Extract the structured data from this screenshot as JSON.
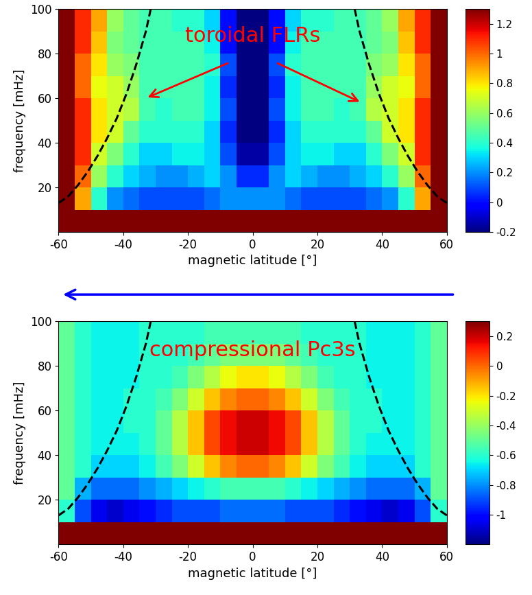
{
  "chart_data": [
    {
      "type": "heatmap",
      "xlabel": "magnetic latitude [°]",
      "ylabel": "frequency [mHz]",
      "xlim": [
        -60,
        60
      ],
      "xticks": [
        -60,
        -40,
        -20,
        0,
        20,
        40,
        60
      ],
      "ylim": [
        0,
        100
      ],
      "yticks": [
        20,
        40,
        60,
        80,
        100
      ],
      "annotations": [
        "toroidal FLRs"
      ],
      "x_edges": [
        -60,
        -55,
        -50,
        -45,
        -40,
        -35,
        -30,
        -25,
        -20,
        -15,
        -10,
        -5,
        0,
        5,
        10,
        15,
        20,
        25,
        30,
        35,
        40,
        45,
        50,
        55,
        60
      ],
      "y_edges": [
        0,
        10,
        20,
        30,
        40,
        50,
        60,
        70,
        80,
        90,
        100
      ],
      "cells": [
        [
          1.3,
          1.3,
          1.3,
          1.3,
          1.3,
          1.3,
          1.3,
          1.3,
          1.3,
          1.3,
          1.3,
          1.3,
          1.3,
          1.3,
          1.3,
          1.3,
          1.3,
          1.3,
          1.3,
          1.3,
          1.3,
          1.3,
          1.3,
          1.3
        ],
        [
          1.3,
          0.9,
          0.4,
          0.2,
          0.15,
          0.1,
          0.1,
          0.1,
          0.1,
          0.15,
          0.2,
          0.2,
          0.2,
          0.2,
          0.15,
          0.1,
          0.1,
          0.1,
          0.1,
          0.15,
          0.2,
          0.4,
          0.9,
          1.3
        ],
        [
          1.3,
          1.0,
          0.6,
          0.4,
          0.3,
          0.25,
          0.2,
          0.2,
          0.25,
          0.3,
          0.2,
          0.05,
          0.05,
          0.2,
          0.3,
          0.25,
          0.2,
          0.2,
          0.25,
          0.3,
          0.4,
          0.6,
          1.0,
          1.3
        ],
        [
          1.3,
          1.1,
          0.7,
          0.55,
          0.4,
          0.3,
          0.3,
          0.35,
          0.35,
          0.3,
          0.1,
          -0.15,
          -0.15,
          0.1,
          0.3,
          0.35,
          0.35,
          0.3,
          0.3,
          0.4,
          0.55,
          0.7,
          1.1,
          1.3
        ],
        [
          1.3,
          1.1,
          0.8,
          0.7,
          0.5,
          0.4,
          0.4,
          0.4,
          0.4,
          0.3,
          0.05,
          -0.2,
          -0.2,
          0.05,
          0.3,
          0.4,
          0.4,
          0.4,
          0.4,
          0.5,
          0.7,
          0.8,
          1.1,
          1.3
        ],
        [
          1.3,
          1.1,
          0.8,
          0.7,
          0.65,
          0.45,
          0.4,
          0.45,
          0.45,
          0.35,
          0.1,
          -0.2,
          -0.2,
          0.1,
          0.35,
          0.45,
          0.45,
          0.4,
          0.45,
          0.65,
          0.7,
          0.8,
          1.1,
          1.3
        ],
        [
          1.3,
          1.0,
          0.75,
          0.7,
          0.6,
          0.45,
          0.45,
          0.45,
          0.45,
          0.35,
          0.05,
          -0.2,
          -0.2,
          0.05,
          0.35,
          0.45,
          0.45,
          0.45,
          0.45,
          0.6,
          0.7,
          0.75,
          1.0,
          1.3
        ],
        [
          1.3,
          1.0,
          0.8,
          0.6,
          0.55,
          0.45,
          0.45,
          0.45,
          0.45,
          0.4,
          0.1,
          -0.2,
          -0.2,
          0.1,
          0.4,
          0.45,
          0.45,
          0.45,
          0.45,
          0.55,
          0.6,
          0.8,
          1.0,
          1.3
        ],
        [
          1.3,
          1.1,
          0.85,
          0.55,
          0.5,
          0.45,
          0.45,
          0.45,
          0.45,
          0.35,
          0.0,
          -0.2,
          -0.2,
          0.0,
          0.35,
          0.45,
          0.45,
          0.45,
          0.45,
          0.5,
          0.55,
          0.85,
          1.1,
          1.3
        ],
        [
          1.3,
          1.1,
          0.9,
          0.6,
          0.5,
          0.45,
          0.45,
          0.4,
          0.4,
          0.3,
          0.0,
          -0.2,
          -0.2,
          0.0,
          0.3,
          0.4,
          0.4,
          0.45,
          0.45,
          0.5,
          0.6,
          0.9,
          1.1,
          1.3
        ]
      ],
      "colorbar": {
        "range": [
          -0.2,
          1.3
        ],
        "ticks": [
          -0.2,
          0,
          0.2,
          0.4,
          0.6,
          0.8,
          1,
          1.2
        ]
      },
      "series": [
        {
          "x": [
            -60,
            -57,
            -54,
            -51,
            -48,
            -45,
            -42,
            -39,
            -36,
            -33,
            -31.5
          ],
          "values": [
            13,
            16,
            21,
            27,
            34,
            42,
            51,
            62,
            75,
            90,
            100
          ],
          "color": "black",
          "line_style": "dashed"
        },
        {
          "x": [
            60,
            57,
            54,
            51,
            48,
            45,
            42,
            39,
            36,
            33,
            31.5
          ],
          "values": [
            13,
            16,
            21,
            27,
            34,
            42,
            51,
            62,
            75,
            90,
            100
          ],
          "color": "black",
          "line_style": "dashed"
        }
      ]
    },
    {
      "type": "heatmap",
      "xlabel": "magnetic latitude [°]",
      "ylabel": "frequency [mHz]",
      "xlim": [
        -60,
        60
      ],
      "xticks": [
        -60,
        -40,
        -20,
        0,
        20,
        40,
        60
      ],
      "ylim": [
        0,
        100
      ],
      "yticks": [
        20,
        40,
        60,
        80,
        100
      ],
      "annotations": [
        "compressional Pc3s"
      ],
      "x_edges": [
        -60,
        -55,
        -50,
        -45,
        -40,
        -35,
        -30,
        -25,
        -20,
        -15,
        -10,
        -5,
        0,
        5,
        10,
        15,
        20,
        25,
        30,
        35,
        40,
        45,
        50,
        55,
        60
      ],
      "y_edges": [
        0,
        10,
        20,
        30,
        40,
        50,
        60,
        70,
        80,
        90,
        100
      ],
      "cells": [
        [
          0.3,
          0.3,
          0.3,
          0.3,
          0.3,
          0.3,
          0.3,
          0.3,
          0.3,
          0.3,
          0.3,
          0.3,
          0.3,
          0.3,
          0.3,
          0.3,
          0.3,
          0.3,
          0.3,
          0.3,
          0.3,
          0.3,
          0.3,
          0.3
        ],
        [
          -0.6,
          -0.9,
          -1.05,
          -1.1,
          -1.05,
          -1.0,
          -0.95,
          -0.9,
          -0.9,
          -0.9,
          -0.85,
          -0.85,
          -0.85,
          -0.85,
          -0.9,
          -0.9,
          -0.9,
          -0.95,
          -1.0,
          -1.05,
          -1.1,
          -1.05,
          -0.9,
          -0.6
        ],
        [
          -0.5,
          -0.75,
          -0.85,
          -0.85,
          -0.85,
          -0.8,
          -0.75,
          -0.7,
          -0.65,
          -0.6,
          -0.55,
          -0.55,
          -0.55,
          -0.55,
          -0.6,
          -0.65,
          -0.7,
          -0.75,
          -0.8,
          -0.85,
          -0.85,
          -0.85,
          -0.75,
          -0.5
        ],
        [
          -0.5,
          -0.6,
          -0.7,
          -0.7,
          -0.7,
          -0.65,
          -0.55,
          -0.45,
          -0.3,
          -0.15,
          -0.05,
          0.0,
          0.0,
          -0.05,
          -0.15,
          -0.3,
          -0.45,
          -0.55,
          -0.65,
          -0.7,
          -0.7,
          -0.7,
          -0.6,
          -0.5
        ],
        [
          -0.5,
          -0.6,
          -0.65,
          -0.65,
          -0.65,
          -0.6,
          -0.5,
          -0.35,
          -0.15,
          0.05,
          0.15,
          0.2,
          0.2,
          0.15,
          0.05,
          -0.15,
          -0.35,
          -0.5,
          -0.6,
          -0.65,
          -0.65,
          -0.65,
          -0.6,
          -0.5
        ],
        [
          -0.5,
          -0.6,
          -0.65,
          -0.65,
          -0.6,
          -0.6,
          -0.5,
          -0.35,
          -0.15,
          0.05,
          0.15,
          0.2,
          0.2,
          0.15,
          0.05,
          -0.15,
          -0.35,
          -0.5,
          -0.6,
          -0.6,
          -0.65,
          -0.65,
          -0.6,
          -0.5
        ],
        [
          -0.5,
          -0.6,
          -0.65,
          -0.65,
          -0.6,
          -0.6,
          -0.55,
          -0.45,
          -0.3,
          -0.15,
          -0.05,
          0.0,
          0.0,
          -0.05,
          -0.15,
          -0.3,
          -0.45,
          -0.55,
          -0.6,
          -0.6,
          -0.65,
          -0.65,
          -0.6,
          -0.5
        ],
        [
          -0.5,
          -0.6,
          -0.65,
          -0.65,
          -0.65,
          -0.6,
          -0.6,
          -0.55,
          -0.45,
          -0.35,
          -0.25,
          -0.2,
          -0.2,
          -0.25,
          -0.35,
          -0.45,
          -0.55,
          -0.6,
          -0.6,
          -0.65,
          -0.65,
          -0.65,
          -0.6,
          -0.5
        ],
        [
          -0.5,
          -0.6,
          -0.65,
          -0.65,
          -0.65,
          -0.6,
          -0.6,
          -0.6,
          -0.55,
          -0.5,
          -0.45,
          -0.45,
          -0.45,
          -0.45,
          -0.5,
          -0.55,
          -0.6,
          -0.6,
          -0.6,
          -0.65,
          -0.65,
          -0.65,
          -0.6,
          -0.5
        ],
        [
          -0.5,
          -0.6,
          -0.65,
          -0.65,
          -0.65,
          -0.6,
          -0.6,
          -0.6,
          -0.6,
          -0.55,
          -0.55,
          -0.55,
          -0.55,
          -0.55,
          -0.55,
          -0.6,
          -0.6,
          -0.6,
          -0.6,
          -0.65,
          -0.65,
          -0.65,
          -0.6,
          -0.5
        ]
      ],
      "colorbar": {
        "range": [
          -1.2,
          0.3
        ],
        "ticks": [
          -1,
          -0.8,
          -0.6,
          -0.4,
          -0.2,
          0,
          0.2
        ]
      },
      "series": [
        {
          "x": [
            -60,
            -57,
            -54,
            -51,
            -48,
            -45,
            -42,
            -39,
            -36,
            -33,
            -31.5
          ],
          "values": [
            13,
            16,
            21,
            27,
            34,
            42,
            51,
            62,
            75,
            90,
            100
          ],
          "color": "black",
          "line_style": "dashed"
        },
        {
          "x": [
            60,
            57,
            54,
            51,
            48,
            45,
            42,
            39,
            36,
            33,
            31.5
          ],
          "values": [
            13,
            16,
            21,
            27,
            34,
            42,
            51,
            62,
            75,
            90,
            100
          ],
          "color": "black",
          "line_style": "dashed"
        }
      ]
    }
  ]
}
